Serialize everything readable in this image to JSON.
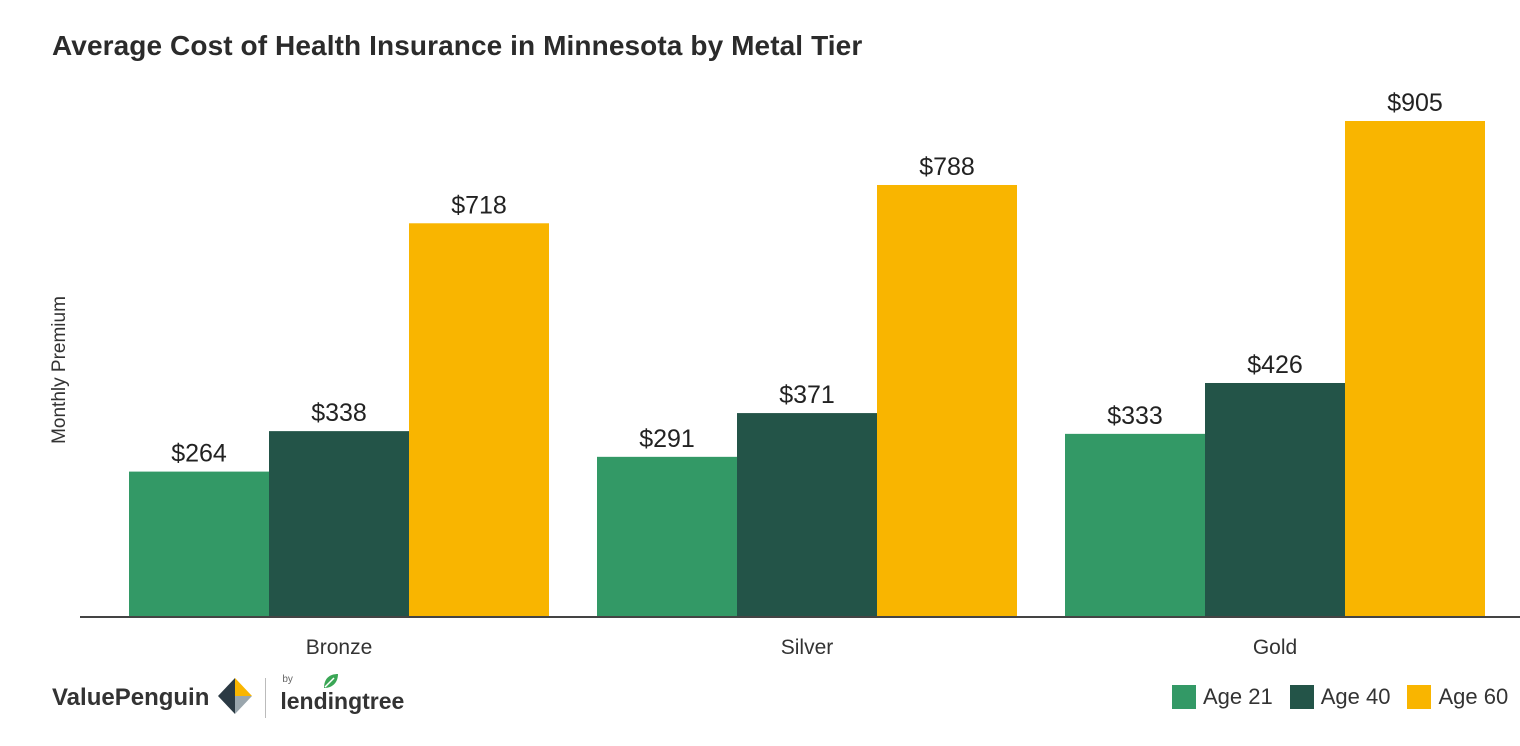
{
  "chart_data": {
    "type": "bar",
    "title": "Average Cost of Health Insurance in Minnesota by Metal Tier",
    "xlabel": "",
    "ylabel": "Monthly Premium",
    "categories": [
      "Bronze",
      "Silver",
      "Gold"
    ],
    "series": [
      {
        "name": "Age 21",
        "color": "#339966",
        "values": [
          264,
          291,
          333
        ],
        "labels": [
          "$264",
          "$291",
          "$333"
        ]
      },
      {
        "name": "Age 40",
        "color": "#235448",
        "values": [
          338,
          371,
          426
        ],
        "labels": [
          "$338",
          "$371",
          "$426"
        ]
      },
      {
        "name": "Age 60",
        "color": "#f9b500",
        "values": [
          718,
          788,
          905
        ],
        "labels": [
          "$718",
          "$788",
          "$905"
        ]
      }
    ],
    "ylim": [
      0,
      905
    ],
    "grid": false,
    "legend_position": "bottom-right"
  },
  "branding": {
    "brand_name": "ValuePenguin",
    "partner_prefix": "by",
    "partner_name": "lendingtree"
  },
  "icons": {
    "brand_logo": "valuepenguin-logo-icon",
    "partner_logo": "lendingtree-leaf-icon"
  }
}
